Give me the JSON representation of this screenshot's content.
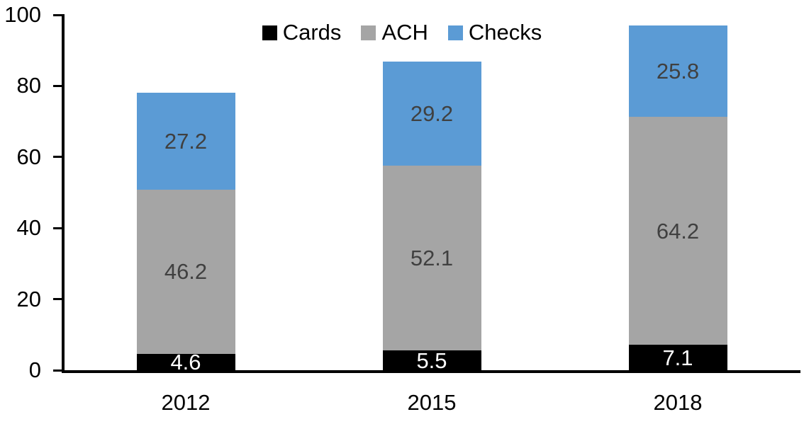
{
  "chart_data": {
    "type": "bar",
    "stacked": true,
    "categories": [
      "2012",
      "2015",
      "2018"
    ],
    "series": [
      {
        "name": "Cards",
        "color": "#000000",
        "label_color": "#ffffff",
        "values": [
          4.6,
          5.5,
          7.1
        ]
      },
      {
        "name": "ACH",
        "color": "#A5A5A5",
        "label_color": "#404040",
        "values": [
          46.2,
          52.1,
          64.2
        ]
      },
      {
        "name": "Checks",
        "color": "#5B9BD5",
        "label_color": "#404040",
        "values": [
          27.2,
          29.2,
          25.8
        ]
      }
    ],
    "totals": [
      78.0,
      86.8,
      97.1
    ],
    "ylim": [
      0,
      100
    ],
    "yticks": [
      0,
      20,
      40,
      60,
      80,
      100
    ],
    "value_label_decimals": 1,
    "legend_position": "top-center",
    "grid": false,
    "axis_color": "#000000",
    "text_color": "#000000",
    "background_color": "#ffffff"
  }
}
